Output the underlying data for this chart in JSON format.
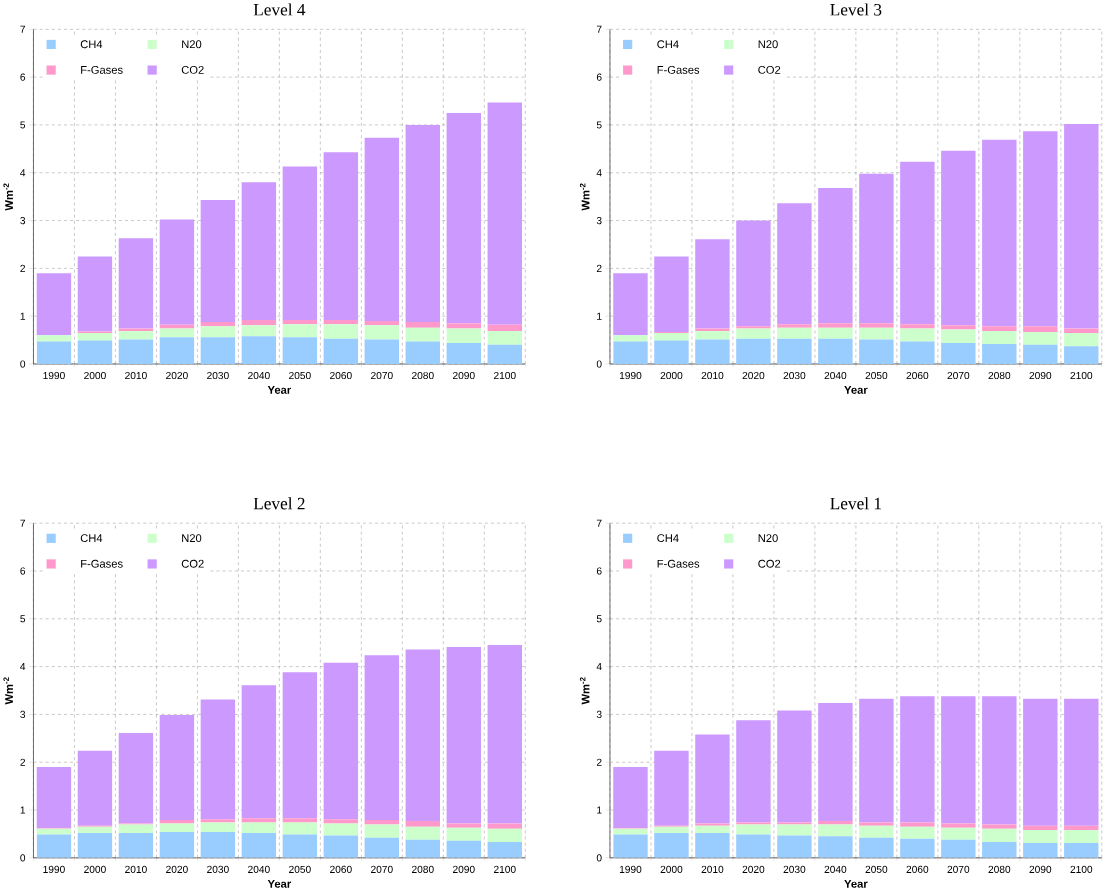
{
  "chart_data": [
    {
      "type": "bar",
      "title": "Level 4",
      "xlabel": "Year",
      "ylabel": "Wm$^{-2}$",
      "categories": [
        "1990",
        "2000",
        "2010",
        "2020",
        "2030",
        "2040",
        "2050",
        "2060",
        "2070",
        "2080",
        "2090",
        "2100"
      ],
      "stacked": true,
      "ylim": [
        0,
        7
      ],
      "yticks": [
        0,
        1,
        2,
        3,
        4,
        5,
        6,
        7
      ],
      "grid": true,
      "legend": "top left",
      "series": [
        {
          "name": "CH4",
          "color": "#99ccff",
          "values": [
            0.47,
            0.49,
            0.51,
            0.56,
            0.56,
            0.58,
            0.56,
            0.53,
            0.51,
            0.47,
            0.44,
            0.4
          ]
        },
        {
          "name": "N20",
          "color": "#ccffcc",
          "values": [
            0.13,
            0.16,
            0.18,
            0.18,
            0.23,
            0.23,
            0.27,
            0.3,
            0.3,
            0.29,
            0.3,
            0.29
          ]
        },
        {
          "name": "F-Gases",
          "color": "#ff99cc",
          "values": [
            null,
            0.03,
            0.05,
            0.08,
            0.09,
            0.11,
            0.09,
            0.09,
            0.09,
            0.12,
            0.11,
            0.13
          ]
        },
        {
          "name": "CO2",
          "color": "#cc99ff",
          "values": [
            1.3,
            1.57,
            1.89,
            2.2,
            2.55,
            2.88,
            3.21,
            3.51,
            3.83,
            4.12,
            4.4,
            4.65
          ]
        }
      ]
    },
    {
      "type": "bar",
      "title": "Level 3",
      "xlabel": "Year",
      "ylabel": "Wm$^{-2}$",
      "categories": [
        "1990",
        "2000",
        "2010",
        "2020",
        "2030",
        "2040",
        "2050",
        "2060",
        "2070",
        "2080",
        "2090",
        "2100"
      ],
      "stacked": true,
      "ylim": [
        0,
        7
      ],
      "yticks": [
        0,
        1,
        2,
        3,
        4,
        5,
        6,
        7
      ],
      "grid": true,
      "legend": "top left",
      "series": [
        {
          "name": "CH4",
          "color": "#99ccff",
          "values": [
            0.47,
            0.49,
            0.51,
            0.53,
            0.53,
            0.53,
            0.51,
            0.47,
            0.44,
            0.42,
            0.4,
            0.37
          ]
        },
        {
          "name": "N20",
          "color": "#ccffcc",
          "values": [
            0.13,
            0.16,
            0.18,
            0.21,
            0.23,
            0.23,
            0.25,
            0.27,
            0.28,
            0.27,
            0.27,
            0.28
          ]
        },
        {
          "name": "F-Gases",
          "color": "#ff99cc",
          "values": [
            null,
            0.02,
            0.05,
            0.05,
            0.07,
            0.09,
            0.09,
            0.09,
            0.09,
            0.1,
            0.12,
            0.09
          ]
        },
        {
          "name": "CO2",
          "color": "#cc99ff",
          "values": [
            1.3,
            1.58,
            1.87,
            2.21,
            2.53,
            2.83,
            3.13,
            3.4,
            3.65,
            3.9,
            4.08,
            4.28
          ]
        }
      ]
    },
    {
      "type": "bar",
      "title": "Level 2",
      "xlabel": "Year",
      "ylabel": "Wm$^{-2}$",
      "categories": [
        "1990",
        "2000",
        "2010",
        "2020",
        "2030",
        "2040",
        "2050",
        "2060",
        "2070",
        "2080",
        "2090",
        "2100"
      ],
      "stacked": true,
      "ylim": [
        0,
        7
      ],
      "yticks": [
        0,
        1,
        2,
        3,
        4,
        5,
        6,
        7
      ],
      "grid": true,
      "legend": "top left",
      "series": [
        {
          "name": "CH4",
          "color": "#99ccff",
          "values": [
            0.49,
            0.52,
            0.52,
            0.54,
            0.54,
            0.52,
            0.49,
            0.47,
            0.42,
            0.38,
            0.36,
            0.33
          ]
        },
        {
          "name": "N20",
          "color": "#ccffcc",
          "values": [
            0.12,
            0.13,
            0.18,
            0.18,
            0.2,
            0.22,
            0.25,
            0.25,
            0.28,
            0.27,
            0.27,
            0.28
          ]
        },
        {
          "name": "F-Gases",
          "color": "#ff99cc",
          "values": [
            0.01,
            0.02,
            0.02,
            0.07,
            0.07,
            0.09,
            0.09,
            0.09,
            0.09,
            0.12,
            0.09,
            0.11
          ]
        },
        {
          "name": "CO2",
          "color": "#cc99ff",
          "values": [
            1.28,
            1.57,
            1.89,
            2.2,
            2.5,
            2.78,
            3.05,
            3.27,
            3.45,
            3.59,
            3.69,
            3.73
          ]
        }
      ]
    },
    {
      "type": "bar",
      "title": "Level 1",
      "xlabel": "Year",
      "ylabel": "Wm$^{-2}$",
      "categories": [
        "1990",
        "2000",
        "2010",
        "2020",
        "2030",
        "2040",
        "2050",
        "2060",
        "2070",
        "2080",
        "2090",
        "2100"
      ],
      "stacked": true,
      "ylim": [
        0,
        7
      ],
      "yticks": [
        0,
        1,
        2,
        3,
        4,
        5,
        6,
        7
      ],
      "grid": true,
      "legend": "top left",
      "series": [
        {
          "name": "CH4",
          "color": "#99ccff",
          "values": [
            0.49,
            0.52,
            0.52,
            0.49,
            0.47,
            0.45,
            0.42,
            0.4,
            0.38,
            0.33,
            0.31,
            0.31
          ]
        },
        {
          "name": "N20",
          "color": "#ccffcc",
          "values": [
            0.12,
            0.13,
            0.15,
            0.21,
            0.23,
            0.25,
            0.25,
            0.25,
            0.25,
            0.28,
            0.27,
            0.27
          ]
        },
        {
          "name": "F-Gases",
          "color": "#ff99cc",
          "values": [
            0.01,
            0.02,
            0.05,
            0.04,
            0.04,
            0.07,
            0.07,
            0.09,
            0.09,
            0.09,
            0.09,
            0.09
          ]
        },
        {
          "name": "CO2",
          "color": "#cc99ff",
          "values": [
            1.28,
            1.57,
            1.86,
            2.14,
            2.34,
            2.47,
            2.59,
            2.64,
            2.66,
            2.68,
            2.66,
            2.66
          ]
        }
      ]
    }
  ]
}
